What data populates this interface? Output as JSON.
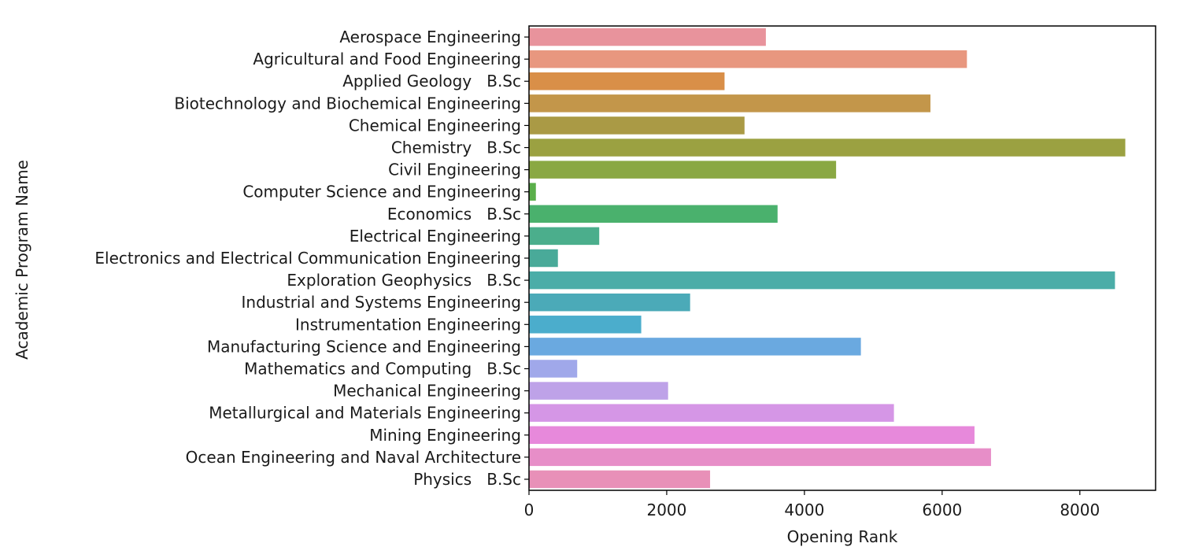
{
  "chart_data": {
    "type": "bar",
    "orientation": "horizontal",
    "xlabel": "Opening Rank",
    "ylabel": "Academic Program Name",
    "xlim": [
      0,
      9100
    ],
    "xticks": [
      0,
      2000,
      4000,
      6000,
      8000
    ],
    "xtick_labels": [
      "0",
      "2000",
      "4000",
      "6000",
      "8000"
    ],
    "grid": false,
    "categories": [
      "Aerospace Engineering",
      "Agricultural and Food Engineering",
      "Applied Geology   B.Sc",
      "Biotechnology and Biochemical Engineering",
      "Chemical Engineering",
      "Chemistry   B.Sc",
      "Civil Engineering",
      "Computer Science and Engineering",
      "Economics   B.Sc",
      "Electrical Engineering",
      "Electronics and Electrical Communication Engineering",
      "Exploration Geophysics   B.Sc",
      "Industrial and Systems Engineering",
      "Instrumentation Engineering",
      "Manufacturing Science and Engineering",
      "Mathematics and Computing   B.Sc",
      "Mechanical Engineering",
      "Metallurgical and Materials Engineering",
      "Mining Engineering",
      "Ocean Engineering and Naval Architecture",
      "Physics   B.Sc"
    ],
    "values": [
      3440,
      6360,
      2840,
      5830,
      3130,
      8660,
      4460,
      100,
      3610,
      1020,
      420,
      8510,
      2340,
      1630,
      4820,
      700,
      2020,
      5300,
      6470,
      6710,
      2630
    ],
    "colors": [
      "#e8939c",
      "#e8977f",
      "#d98f48",
      "#c3964a",
      "#aa9a45",
      "#9ba141",
      "#8aa843",
      "#5aaf4a",
      "#4ab16d",
      "#4bae8c",
      "#49aa99",
      "#4bada8",
      "#4baab8",
      "#4badcc",
      "#6aa9e0",
      "#a0a8ea",
      "#bea2e8",
      "#d596e6",
      "#e789db",
      "#e78ec8",
      "#e890b8"
    ]
  }
}
